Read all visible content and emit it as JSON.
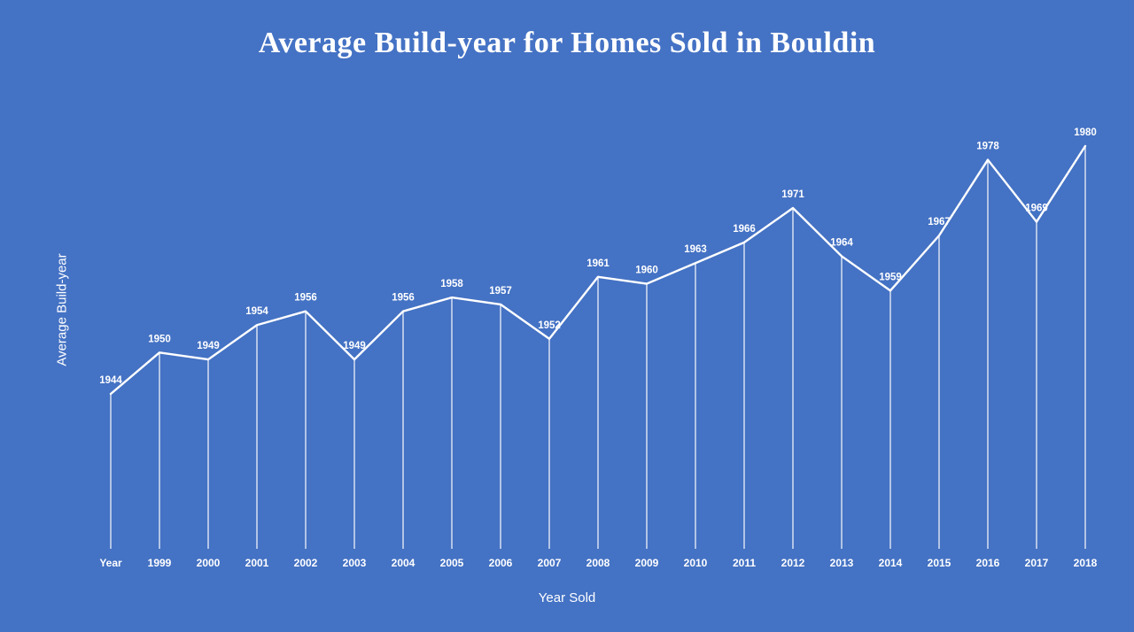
{
  "page": {
    "background_color": "#4472c4",
    "text_color": "#ffffff"
  },
  "chart_data": {
    "type": "line",
    "title": "Average Build-year for Homes Sold in Bouldin",
    "xlabel": "Year Sold",
    "ylabel": "Average Build-year",
    "categories": [
      "Year",
      "1999",
      "2000",
      "2001",
      "2002",
      "2003",
      "2004",
      "2005",
      "2006",
      "2007",
      "2008",
      "2009",
      "2010",
      "2011",
      "2012",
      "2013",
      "2014",
      "2015",
      "2016",
      "2017",
      "2018"
    ],
    "values": [
      1944,
      1950,
      1949,
      1954,
      1956,
      1949,
      1956,
      1958,
      1957,
      1952,
      1961,
      1960,
      1963,
      1966,
      1971,
      1964,
      1959,
      1967,
      1978,
      1969,
      1980
    ],
    "series_name": "Average Build-year",
    "ylim": [
      1944,
      1980
    ],
    "grid": false,
    "legend_position": "none",
    "line_color": "#ffffff",
    "label_color": "#ffffff",
    "drop_lines": true,
    "layout": {
      "x_first": 125,
      "x_last": 1225,
      "y_at_min": 445,
      "y_at_max": 165,
      "baseline_y": 620,
      "tick_y": 640,
      "label_offset": 12
    }
  }
}
